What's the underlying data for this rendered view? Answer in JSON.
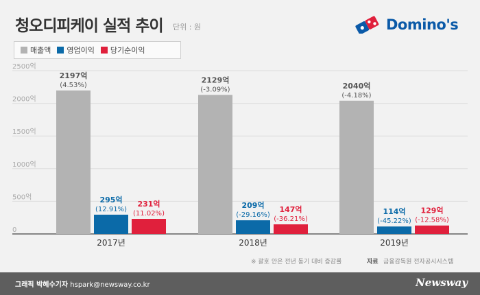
{
  "header": {
    "title": "청오디피케이 실적 추이",
    "unit": "단위 : 원",
    "logo_text": "Domino's"
  },
  "legend": [
    {
      "label": "매출액",
      "color": "#b3b3b3"
    },
    {
      "label": "영업이익",
      "color": "#0b6aa8"
    },
    {
      "label": "당기순이익",
      "color": "#e0203c"
    }
  ],
  "chart_data": {
    "type": "bar",
    "categories": [
      "2017년",
      "2018년",
      "2019년"
    ],
    "y_ticks": [
      "0",
      "500억",
      "1000억",
      "1500억",
      "2000억",
      "2500억"
    ],
    "ylim": [
      0,
      2500
    ],
    "grid": true,
    "legend_position": "top-left",
    "series": [
      {
        "name": "매출액",
        "color": "#b3b3b3",
        "values": [
          2197,
          2129,
          2040
        ],
        "value_labels": [
          "2197억",
          "2129억",
          "2040억"
        ],
        "change_labels": [
          "(4.53%)",
          "(-3.09%)",
          "(-4.18%)"
        ]
      },
      {
        "name": "영업이익",
        "color": "#0b6aa8",
        "values": [
          295,
          209,
          114
        ],
        "value_labels": [
          "295억",
          "209억",
          "114억"
        ],
        "change_labels": [
          "(12.91%)",
          "(-29.16%)",
          "(-45.22%)"
        ]
      },
      {
        "name": "당기순이익",
        "color": "#e0203c",
        "values": [
          231,
          147,
          129
        ],
        "value_labels": [
          "231억",
          "147억",
          "129억"
        ],
        "change_labels": [
          "(11.02%)",
          "(-36.21%)",
          "(-12.58%)"
        ]
      }
    ]
  },
  "notes": {
    "note": "※ 괄호 안은 전년 동기 대비 증감률",
    "source_label": "자료",
    "source": "금융감독원 전자공시시스템"
  },
  "footer": {
    "credit_label": "그래픽 박혜수기자",
    "email": "hspark@newsway.co.kr",
    "brand": "Newsway"
  }
}
